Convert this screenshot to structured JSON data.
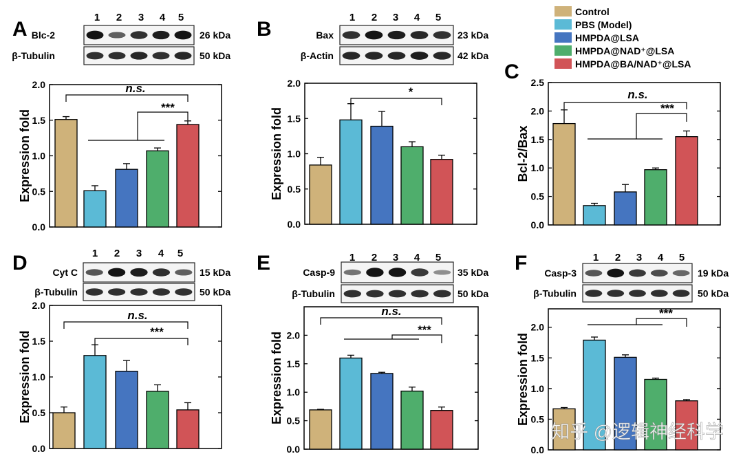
{
  "legend": [
    {
      "label": "Control",
      "color": "#CFB27A"
    },
    {
      "label": "PBS (Model)",
      "color": "#5BBAD6"
    },
    {
      "label": "HMPDA@LSA",
      "color": "#4575C0"
    },
    {
      "label": "HMPDA@NAD⁺@LSA",
      "color": "#4FAE6C"
    },
    {
      "label": "HMPDA@BA/NAD⁺@LSA",
      "color": "#D15457"
    }
  ],
  "watermark": "知乎 @逻辑神经科学",
  "chart_data": [
    {
      "panel": "A",
      "type": "bar",
      "categories": [
        "1",
        "2",
        "3",
        "4",
        "5"
      ],
      "values": [
        1.51,
        0.51,
        0.81,
        1.07,
        1.44
      ],
      "errors": [
        0.04,
        0.07,
        0.08,
        0.04,
        0.05
      ],
      "ylabel": "Expression fold",
      "ylim": [
        0,
        2.0
      ],
      "yticks": [
        "0.0",
        "0.5",
        "1.0",
        "1.5",
        "2.0"
      ],
      "blots": [
        {
          "protein": "Blс-2",
          "size": "26 kDa",
          "intensities": [
            0.95,
            0.55,
            0.8,
            0.9,
            0.95
          ]
        },
        {
          "protein": "β-Tubulin",
          "size": "50 kDa",
          "intensities": [
            0.8,
            0.8,
            0.85,
            0.8,
            0.85
          ]
        }
      ],
      "significance": [
        "n.s.",
        "***"
      ]
    },
    {
      "panel": "B",
      "type": "bar",
      "categories": [
        "1",
        "2",
        "3",
        "4",
        "5"
      ],
      "values": [
        0.84,
        1.48,
        1.39,
        1.1,
        0.92
      ],
      "errors": [
        0.11,
        0.23,
        0.21,
        0.07,
        0.06
      ],
      "ylabel": "Expression fold",
      "ylim": [
        0,
        2.0
      ],
      "yticks": [
        "0.0",
        "0.5",
        "1.0",
        "1.5",
        "2.0"
      ],
      "blots": [
        {
          "protein": "Bax",
          "size": "23 kDa",
          "intensities": [
            0.8,
            0.95,
            0.9,
            0.85,
            0.8
          ]
        },
        {
          "protein": "β-Actin",
          "size": "42 kDa",
          "intensities": [
            0.85,
            0.85,
            0.85,
            0.9,
            0.85
          ]
        }
      ],
      "significance": [
        "*"
      ]
    },
    {
      "panel": "C",
      "type": "bar",
      "categories": [
        "1",
        "2",
        "3",
        "4",
        "5"
      ],
      "values": [
        1.78,
        0.34,
        0.58,
        0.97,
        1.55
      ],
      "errors": [
        0.24,
        0.04,
        0.13,
        0.03,
        0.1
      ],
      "ylabel": "Bcl-2/Bax",
      "ylim": [
        0,
        2.5
      ],
      "yticks": [
        "0.0",
        "0.5",
        "1.0",
        "1.5",
        "2.0",
        "2.5"
      ],
      "blots": [],
      "significance": [
        "n.s.",
        "***"
      ]
    },
    {
      "panel": "D",
      "type": "bar",
      "categories": [
        "1",
        "2",
        "3",
        "4",
        "5"
      ],
      "values": [
        0.5,
        1.3,
        1.08,
        0.8,
        0.54
      ],
      "errors": [
        0.08,
        0.15,
        0.15,
        0.09,
        0.1
      ],
      "ylabel": "Expression fold",
      "ylim": [
        0,
        2.0
      ],
      "yticks": [
        "0.0",
        "0.5",
        "1.0",
        "1.5",
        "2.0"
      ],
      "blots": [
        {
          "protein": "Cyt C",
          "size": "15 kDa",
          "intensities": [
            0.6,
            0.95,
            0.9,
            0.8,
            0.55
          ]
        },
        {
          "protein": "β-Tubulin",
          "size": "50 kDa",
          "intensities": [
            0.8,
            0.8,
            0.8,
            0.8,
            0.8
          ]
        }
      ],
      "significance": [
        "n.s.",
        "***"
      ]
    },
    {
      "panel": "E",
      "type": "bar",
      "categories": [
        "1",
        "2",
        "3",
        "4",
        "5"
      ],
      "values": [
        0.69,
        1.6,
        1.33,
        1.02,
        0.68
      ],
      "errors": [
        0.01,
        0.05,
        0.02,
        0.07,
        0.06
      ],
      "ylabel": "Expression fold",
      "ylim": [
        0,
        2.5
      ],
      "yticks": [
        "0.0",
        "0.5",
        "1.0",
        "1.5",
        "2.0"
      ],
      "blots": [
        {
          "protein": "Casp-9",
          "size": "35 kDa",
          "intensities": [
            0.45,
            0.95,
            0.95,
            0.75,
            0.3
          ]
        },
        {
          "protein": "β-Tubulin",
          "size": "50 kDa",
          "intensities": [
            0.8,
            0.8,
            0.8,
            0.8,
            0.8
          ]
        }
      ],
      "significance": [
        "n.s.",
        "***"
      ]
    },
    {
      "panel": "F",
      "type": "bar",
      "categories": [
        "1",
        "2",
        "3",
        "4",
        "5"
      ],
      "values": [
        0.67,
        1.79,
        1.51,
        1.15,
        0.8
      ],
      "errors": [
        0.02,
        0.05,
        0.04,
        0.02,
        0.02
      ],
      "ylabel": "Expression fold",
      "ylim": [
        0,
        2.3
      ],
      "yticks": [
        "0.0",
        "0.5",
        "1.0",
        "1.5",
        "2.0"
      ],
      "blots": [
        {
          "protein": "Casp-3",
          "size": "19 kDa",
          "intensities": [
            0.6,
            0.95,
            0.75,
            0.65,
            0.5
          ]
        },
        {
          "protein": "β-Tubulin",
          "size": "50 kDa",
          "intensities": [
            0.8,
            0.8,
            0.8,
            0.8,
            0.8
          ]
        }
      ],
      "significance": [
        "***"
      ]
    }
  ]
}
